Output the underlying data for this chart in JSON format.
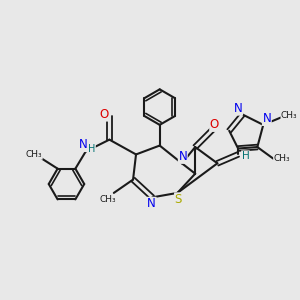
{
  "bg_color": "#e8e8e8",
  "bond_color": "#1a1a1a",
  "N_color": "#0000ee",
  "O_color": "#dd0000",
  "S_color": "#aaaa00",
  "H_color": "#007070",
  "figsize": [
    3.0,
    3.0
  ],
  "dpi": 100,
  "xlim": [
    0,
    10
  ],
  "ylim": [
    0,
    10
  ]
}
